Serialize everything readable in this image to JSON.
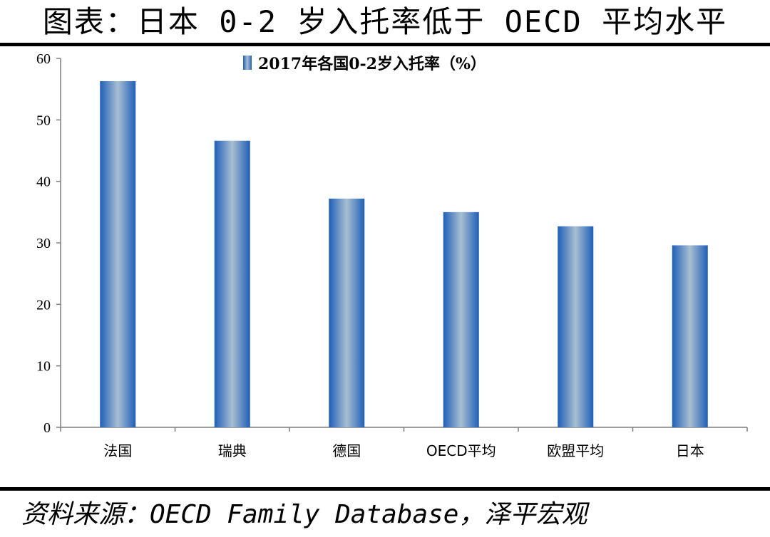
{
  "header": {
    "title": "图表：日本 0-2 岁入托率低于 OECD 平均水平"
  },
  "footer": {
    "source": "资料来源：OECD Family Database，泽平宏观"
  },
  "chart_data": {
    "type": "bar",
    "categories": [
      "法国",
      "瑞典",
      "德国",
      "OECD平均",
      "欧盟平均",
      "日本"
    ],
    "series": [
      {
        "name": "2017年各国0-2岁入托率（%）",
        "values": [
          56.3,
          46.6,
          37.2,
          35.0,
          32.7,
          29.6
        ]
      }
    ],
    "ylim": [
      0,
      60
    ],
    "yticks": [
      0,
      10,
      20,
      30,
      40,
      50,
      60
    ],
    "grid": false,
    "legend": "top-center",
    "colors": {
      "bar_edge": "#1f5fb8",
      "bar_center": "#a8bfd2"
    }
  }
}
